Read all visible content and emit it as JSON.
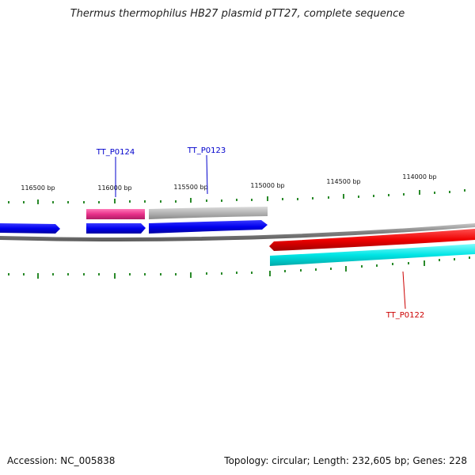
{
  "title": "Thermus thermophilus HB27 plasmid pTT27, complete sequence",
  "footer": {
    "accession": "Accession: NC_005838",
    "summary": "Topology: circular; Length: 232,605 bp; Genes: 228"
  },
  "scale_labels": [
    "116500 bp",
    "116000 bp",
    "115500 bp",
    "115000 bp",
    "114500 bp",
    "114000 bp"
  ],
  "gene_labels": [
    {
      "name": "TT_P0124",
      "color": "#0000cc"
    },
    {
      "name": "TT_P0123",
      "color": "#0000cc"
    },
    {
      "name": "TT_P0122",
      "color": "#cc0000"
    }
  ],
  "colors": {
    "backbone": "#808080",
    "tick": "#2a8a2a",
    "forward_gene": "#0000ee",
    "reverse_gene": "#ee0000",
    "rna_gene": "#e8308a",
    "other_gene": "#b0b0b0",
    "orf": "#00e5e5"
  }
}
